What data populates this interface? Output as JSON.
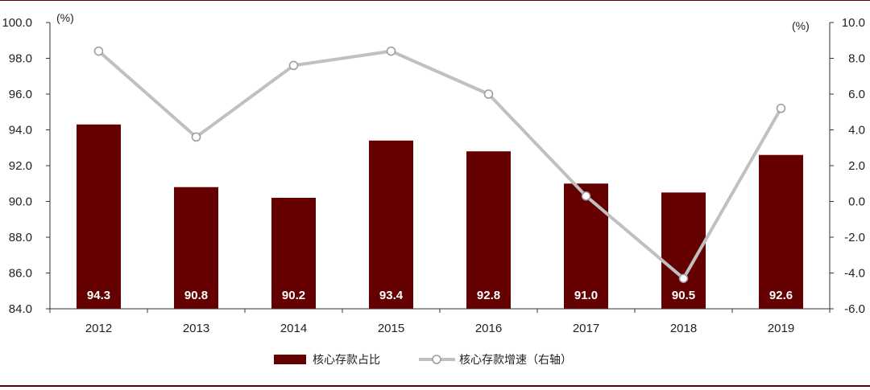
{
  "chart_data": {
    "type": "bar+line",
    "categories": [
      "2012",
      "2013",
      "2014",
      "2015",
      "2016",
      "2017",
      "2018",
      "2019"
    ],
    "series": [
      {
        "name": "核心存款占比",
        "type": "bar",
        "axis": "left",
        "values": [
          94.3,
          90.8,
          90.2,
          93.4,
          92.8,
          91.0,
          90.5,
          92.6
        ],
        "labels": [
          "94.3",
          "90.8",
          "90.2",
          "93.4",
          "92.8",
          "91.0",
          "90.5",
          "92.6"
        ],
        "color": "#640000"
      },
      {
        "name": "核心存款增速（右轴）",
        "type": "line",
        "axis": "right",
        "values": [
          8.4,
          3.6,
          7.6,
          8.4,
          6.0,
          0.3,
          -4.3,
          5.2
        ],
        "color": "#c0c0c0"
      }
    ],
    "left_axis": {
      "unit": "(%)",
      "ylim": [
        84.0,
        100.0
      ],
      "ticks": [
        "84.0",
        "86.0",
        "88.0",
        "90.0",
        "92.0",
        "94.0",
        "96.0",
        "98.0",
        "100.0"
      ]
    },
    "right_axis": {
      "unit": "(%)",
      "ylim": [
        -6.0,
        10.0
      ],
      "ticks": [
        "-6.0",
        "-4.0",
        "-2.0",
        "0.0",
        "2.0",
        "4.0",
        "6.0",
        "8.0",
        "10.0"
      ]
    },
    "legend": {
      "position": "bottom",
      "items": [
        {
          "label": "核心存款占比",
          "kind": "bar",
          "color": "#640000"
        },
        {
          "label": "核心存款增速（右轴）",
          "kind": "line",
          "color": "#c0c0c0"
        }
      ]
    },
    "grid": false
  }
}
